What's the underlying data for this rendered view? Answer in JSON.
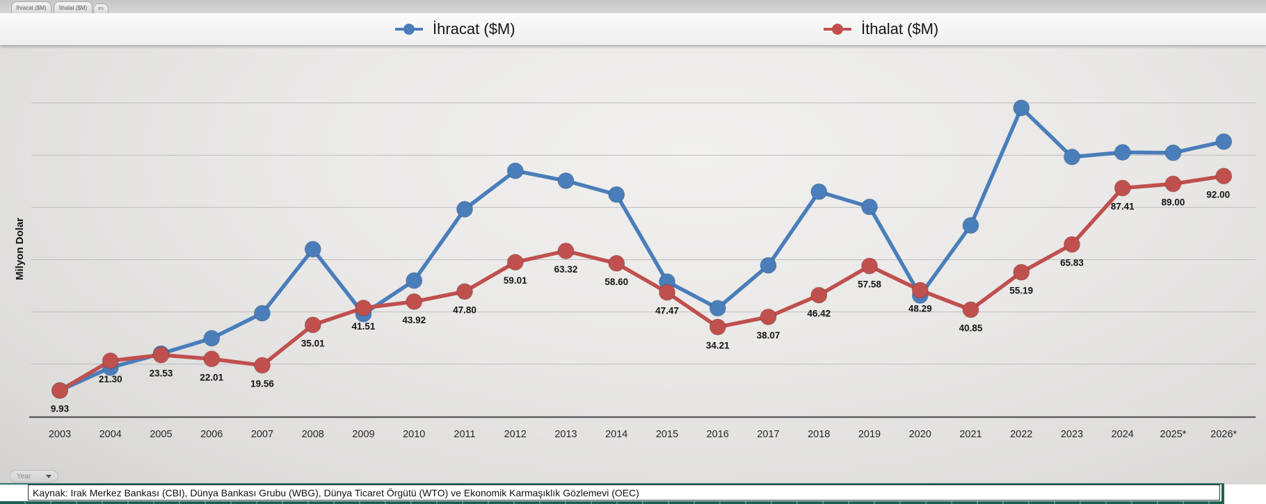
{
  "sheet_tabs": [
    {
      "label": "İhracat ($M)"
    },
    {
      "label": "İthalat ($M)"
    },
    {
      "label": "es"
    }
  ],
  "legend": {
    "position": "top",
    "items": [
      {
        "label": "İhracat ($M)",
        "color": "#4a7eba"
      },
      {
        "label": "İthalat ($M)",
        "color": "#c0504d"
      }
    ]
  },
  "year_filter": {
    "label": "Year"
  },
  "source_note": "Kaynak: Irak Merkez Bankası (CBI), Dünya Bankası Grubu (WBG), Dünya Ticaret Örgütü (WTO) ve Ekonomik Karmaşıklık Gözlemevi (OEC)",
  "chart_data": {
    "type": "line",
    "title": "",
    "xlabel": "Year",
    "ylabel": "Milyon Dolar",
    "ylim": [
      0,
      130
    ],
    "grid": "horizontal",
    "grid_step": 20,
    "x": [
      "2003",
      "2004",
      "2005",
      "2006",
      "2007",
      "2008",
      "2009",
      "2010",
      "2011",
      "2012",
      "2013",
      "2014",
      "2015",
      "2016",
      "2017",
      "2018",
      "2019",
      "2020",
      "2021",
      "2022",
      "2023",
      "2024",
      "2025*",
      "2026*"
    ],
    "series": [
      {
        "name": "İhracat ($M)",
        "color": "#4a7eba",
        "marker": "circle",
        "data_labels": false,
        "values_estimated": true,
        "values": [
          9.9,
          18.7,
          24.0,
          29.9,
          39.5,
          64.0,
          39.2,
          52.0,
          79.3,
          94.0,
          90.2,
          84.9,
          51.6,
          41.4,
          57.8,
          86.0,
          80.2,
          46.3,
          73.1,
          118.1,
          99.3,
          101.1,
          100.9,
          105.2
        ]
      },
      {
        "name": "İthalat ($M)",
        "color": "#c0504d",
        "marker": "circle",
        "data_labels": true,
        "values": [
          9.93,
          21.3,
          23.53,
          22.01,
          19.56,
          35.01,
          41.51,
          43.92,
          47.8,
          59.01,
          63.32,
          58.6,
          47.47,
          34.21,
          38.07,
          46.42,
          57.58,
          48.29,
          40.85,
          55.19,
          65.83,
          87.41,
          89.0,
          92.0
        ]
      }
    ]
  }
}
